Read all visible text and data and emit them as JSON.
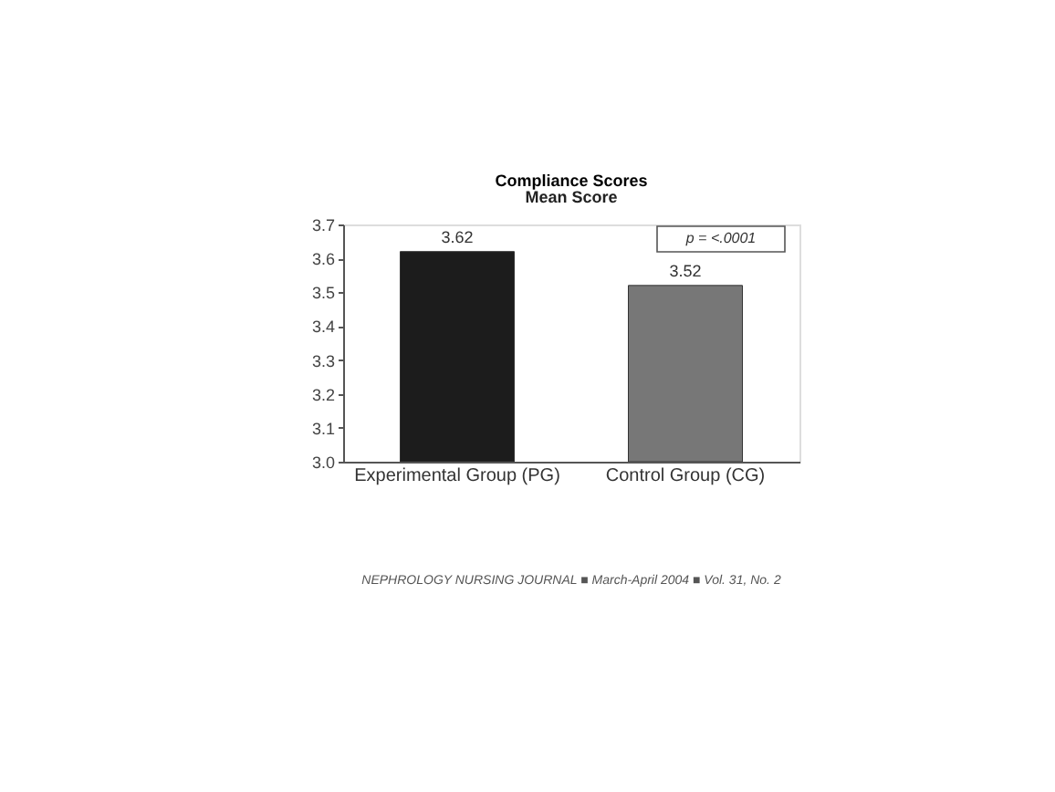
{
  "chart_data": {
    "type": "bar",
    "title": "Compliance Scores",
    "subtitle": "Mean Score",
    "categories": [
      "Experimental Group (PG)",
      "Control Group (CG)"
    ],
    "values": [
      3.62,
      3.52
    ],
    "colors": [
      "#1c1c1c",
      "#777777"
    ],
    "ylim": [
      3.0,
      3.7
    ],
    "yticks": [
      {
        "value": 3.0,
        "label": "3.0"
      },
      3.1,
      3.2,
      3.3,
      3.4,
      3.5,
      3.6,
      3.7
    ],
    "data_labels": true,
    "grid": false,
    "annotations": [
      "p = <.0001",
      "NEPHROLOGY NURSING JOURNAL ■ March-April 2004 ■ Vol. 31, No. 2"
    ]
  }
}
